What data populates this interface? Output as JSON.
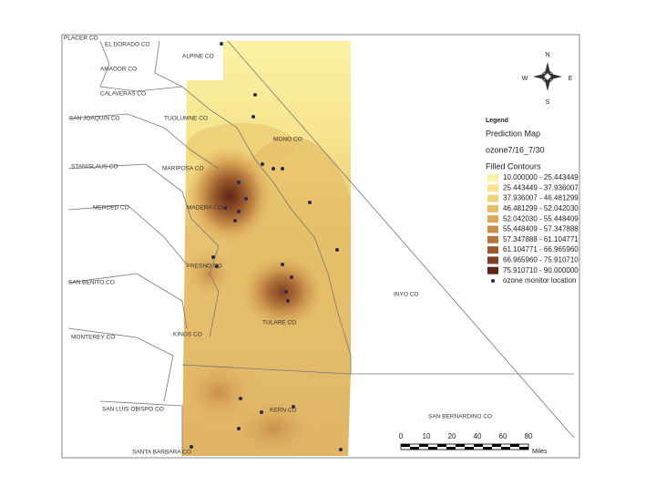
{
  "map": {
    "counties": [
      "PLACER CO",
      "EL DORADO CO",
      "ALPINE CO",
      "AMADOR CO",
      "CALAVERAS CO",
      "SAN JOAQUIN CO",
      "TUOLUMNE CO",
      "MONO CO",
      "STANISLAUS CO",
      "MARIPOSA CO",
      "MERCED CO",
      "MADERA CO",
      "FRESNO CO",
      "SAN BENITO CO",
      "INYO CO",
      "TULARE CO",
      "MONTEREY CO",
      "KINGS CO",
      "SAN LUIS OBISPO CO",
      "KERN CO",
      "SAN BERNARDINO CO",
      "SANTA BARBARA CO"
    ],
    "compass": {
      "north": "N",
      "east": "E",
      "south": "S",
      "west": "W"
    },
    "legend": {
      "heading": "Legend",
      "title": "Prediction Map",
      "layer": "ozone7/16_7/30",
      "subtitle": "Filled Contours",
      "items": [
        {
          "label": "10.000000 - 25.443449",
          "color": "#fbf3a6"
        },
        {
          "label": "25.443449 - 37.936007",
          "color": "#f6e38c"
        },
        {
          "label": "37.936007 - 46.481299",
          "color": "#efd27a"
        },
        {
          "label": "46.481299 - 52.042030",
          "color": "#e5bd68"
        },
        {
          "label": "52.042030 - 55.448409",
          "color": "#d9a758"
        },
        {
          "label": "55.448409 - 57.347888",
          "color": "#c98f4a"
        },
        {
          "label": "57.347888 - 61.104771",
          "color": "#b5753b"
        },
        {
          "label": "61.104771 - 66.965960",
          "color": "#9b5a2e"
        },
        {
          "label": "66.965960 - 75.910710",
          "color": "#7f3f22"
        },
        {
          "label": "75.910710 - 90.000000",
          "color": "#5e2416"
        }
      ],
      "monitor": "ozone monitor location"
    },
    "scale": {
      "ticks": [
        "0",
        "10",
        "20",
        "40",
        "60",
        "80"
      ],
      "unit": "Miles"
    }
  }
}
